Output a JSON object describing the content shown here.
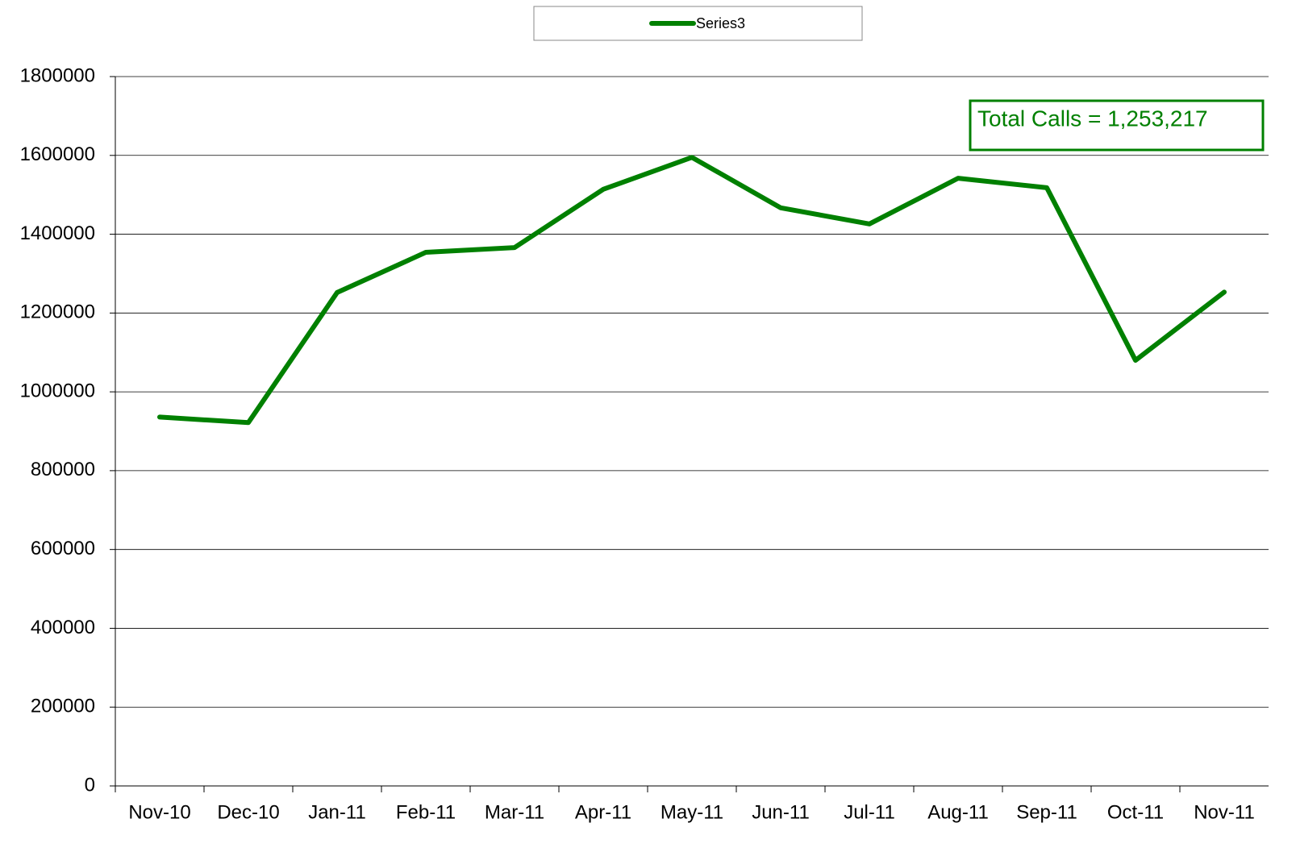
{
  "chart_data": {
    "type": "line",
    "categories": [
      "Nov-10",
      "Dec-10",
      "Jan-11",
      "Feb-11",
      "Mar-11",
      "Apr-11",
      "May-11",
      "Jun-11",
      "Jul-11",
      "Aug-11",
      "Sep-11",
      "Oct-11",
      "Nov-11"
    ],
    "series": [
      {
        "name": "Series3",
        "color": "#008000",
        "values": [
          936000,
          922000,
          1252000,
          1354000,
          1366000,
          1514000,
          1595000,
          1467000,
          1426000,
          1542000,
          1518000,
          1080000,
          1253217
        ]
      }
    ],
    "ylim": [
      0,
      1800000
    ],
    "yticks": [
      0,
      200000,
      400000,
      600000,
      800000,
      1000000,
      1200000,
      1400000,
      1600000,
      1800000
    ],
    "grid": true,
    "legend": "top",
    "annotation": "Total Calls = 1,253,217"
  }
}
